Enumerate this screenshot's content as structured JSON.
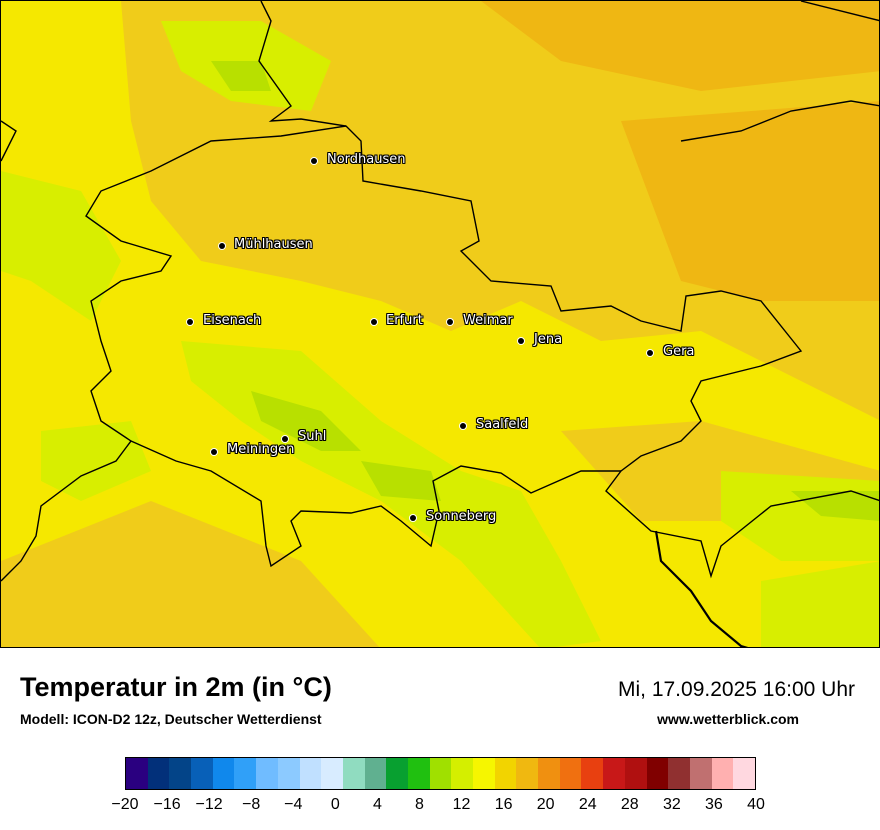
{
  "map": {
    "cities": [
      {
        "name": "Nordhausen"
      },
      {
        "name": "Mühlhausen"
      },
      {
        "name": "Eisenach"
      },
      {
        "name": "Erfurt"
      },
      {
        "name": "Weimar"
      },
      {
        "name": "Jena"
      },
      {
        "name": "Gera"
      },
      {
        "name": "Suhl"
      },
      {
        "name": "Meiningen"
      },
      {
        "name": "Saalfeld"
      },
      {
        "name": "Sonneberg"
      }
    ],
    "fill_colors": {
      "base": "#f5e800",
      "warm": "#f0cc1a",
      "warmer": "#efb713",
      "cool": "#d8ee00",
      "cooler": "#b8e000"
    }
  },
  "header": {
    "title": "Temperatur in 2m (in °C)",
    "subtitle": "Modell: ICON-D2 12z, Deutscher Wetterdienst",
    "datetime": "Mi, 17.09.2025 16:00 Uhr",
    "website": "www.wetterblick.com"
  },
  "legend": {
    "colors": [
      "#2a0080",
      "#02307a",
      "#034488",
      "#0860b8",
      "#1088ec",
      "#30a0f8",
      "#70bcff",
      "#8ccaff",
      "#c0e0ff",
      "#d8ecff",
      "#90dcc0",
      "#60b090",
      "#08a030",
      "#20c010",
      "#a0e000",
      "#d4ef00",
      "#f6f600",
      "#f2d400",
      "#f0b810",
      "#f09010",
      "#f07010",
      "#e84010",
      "#c81818",
      "#b01010",
      "#800000",
      "#903030",
      "#c07070",
      "#ffb0b0",
      "#ffd8e0"
    ],
    "ticks": [
      "−20",
      "−16",
      "−12",
      "−8",
      "−4",
      "0",
      "4",
      "8",
      "12",
      "16",
      "20",
      "24",
      "28",
      "32",
      "36",
      "40"
    ]
  }
}
